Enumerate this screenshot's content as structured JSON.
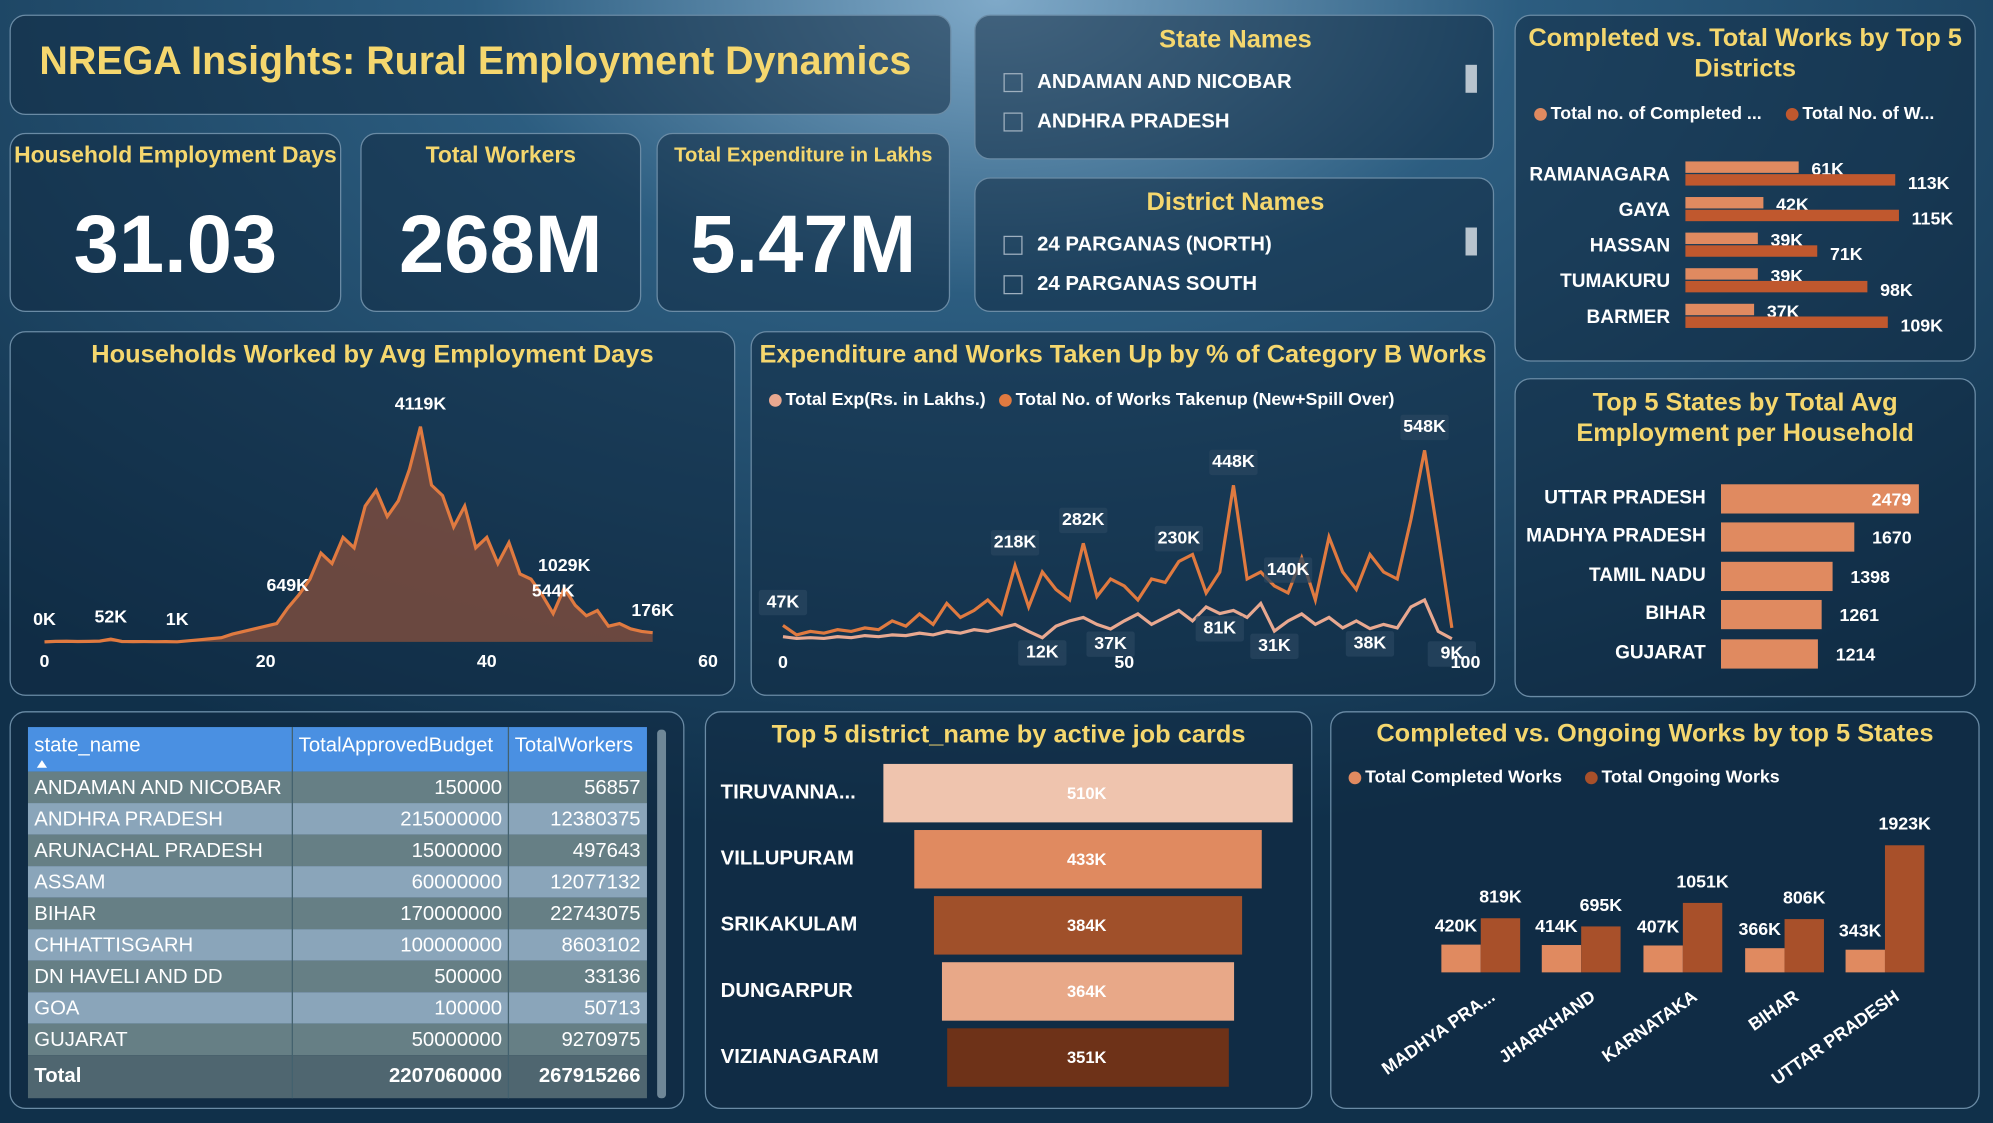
{
  "title": "NREGA Insights: Rural Employment Dynamics",
  "kpis": [
    {
      "label": "Household Employment Days",
      "value": "31.03"
    },
    {
      "label": "Total Workers",
      "value": "268M"
    },
    {
      "label": "Total Expenditure in Lakhs",
      "value": "5.47M"
    }
  ],
  "slicers": [
    {
      "title": "State Names",
      "items": [
        "ANDAMAN AND NICOBAR",
        "ANDHRA PRADESH"
      ]
    },
    {
      "title": "District Names",
      "items": [
        "24 PARGANAS (NORTH)",
        "24 PARGANAS SOUTH"
      ]
    }
  ],
  "table": {
    "columns": [
      "state_name",
      "TotalApprovedBudget",
      "TotalWorkers"
    ],
    "rows": [
      [
        "ANDAMAN AND NICOBAR",
        150000,
        56857
      ],
      [
        "ANDHRA PRADESH",
        215000000,
        12380375
      ],
      [
        "ARUNACHAL PRADESH",
        15000000,
        497643
      ],
      [
        "ASSAM",
        60000000,
        12077132
      ],
      [
        "BIHAR",
        170000000,
        22743075
      ],
      [
        "CHHATTISGARH",
        100000000,
        8603102
      ],
      [
        "DN HAVELI AND DD",
        500000,
        33136
      ],
      [
        "GOA",
        100000,
        50713
      ],
      [
        "GUJARAT",
        50000000,
        9270975
      ]
    ],
    "total": [
      "Total",
      2207060000,
      267915266
    ]
  },
  "chart_data": [
    {
      "type": "area",
      "title": "Households Worked by Avg Employment Days",
      "color": "#e07a40",
      "fill": "#7a4c3e",
      "x": [
        0,
        1,
        2,
        3,
        4,
        5,
        6,
        7,
        8,
        9,
        10,
        11,
        12,
        13,
        14,
        15,
        16,
        17,
        18,
        19,
        20,
        21,
        22,
        23,
        24,
        25,
        26,
        27,
        28,
        29,
        30,
        31,
        32,
        33,
        34,
        35,
        36,
        37,
        38,
        39,
        40,
        41,
        42,
        43,
        44,
        45,
        46,
        47,
        48,
        49,
        50,
        51,
        52,
        53,
        54,
        55
      ],
      "values": [
        0,
        10,
        12,
        8,
        10,
        15,
        52,
        8,
        5,
        6,
        4,
        5,
        1,
        20,
        40,
        60,
        80,
        150,
        200,
        250,
        300,
        350,
        649,
        900,
        1200,
        1700,
        1500,
        2000,
        1800,
        2600,
        2900,
        2400,
        2700,
        3300,
        4119,
        3000,
        2800,
        2200,
        2600,
        1800,
        2000,
        1500,
        1900,
        1300,
        1200,
        900,
        544,
        1029,
        700,
        500,
        600,
        300,
        350,
        250,
        200,
        176
      ],
      "value_labels": [
        "0K",
        null,
        null,
        null,
        null,
        null,
        "52K",
        null,
        null,
        null,
        null,
        null,
        "1K",
        null,
        null,
        null,
        null,
        null,
        null,
        null,
        null,
        null,
        "649K",
        null,
        null,
        null,
        null,
        null,
        null,
        null,
        null,
        null,
        null,
        null,
        "4119K",
        null,
        null,
        null,
        null,
        null,
        null,
        null,
        null,
        null,
        null,
        null,
        "544K",
        "1029K",
        null,
        null,
        null,
        null,
        null,
        null,
        null,
        "176K"
      ],
      "xlim": [
        0,
        60
      ],
      "xticks": [
        0,
        20,
        40,
        60
      ],
      "ylim": [
        0,
        4500
      ]
    },
    {
      "type": "line",
      "title": "Expenditure and Works Taken Up by % of Category B Works",
      "x": [
        0,
        2,
        4,
        6,
        8,
        10,
        12,
        14,
        16,
        18,
        20,
        22,
        24,
        26,
        28,
        30,
        32,
        34,
        36,
        38,
        40,
        42,
        44,
        46,
        48,
        50,
        52,
        54,
        56,
        58,
        60,
        62,
        64,
        66,
        68,
        70,
        72,
        74,
        76,
        78,
        80,
        82,
        84,
        86,
        88,
        90,
        92,
        94,
        96,
        98
      ],
      "series": [
        {
          "name": "Total Exp(Rs. in Lakhs.)",
          "color": "#e8a890",
          "values": [
            15,
            10,
            12,
            10,
            15,
            12,
            18,
            15,
            20,
            18,
            25,
            20,
            30,
            25,
            35,
            30,
            40,
            50,
            30,
            12,
            45,
            60,
            70,
            50,
            37,
            60,
            80,
            50,
            70,
            90,
            60,
            100,
            81,
            90,
            70,
            110,
            31,
            60,
            80,
            50,
            70,
            40,
            60,
            38,
            50,
            40,
            100,
            120,
            30,
            9
          ],
          "value_labels": [
            null,
            null,
            null,
            null,
            null,
            null,
            null,
            null,
            null,
            null,
            null,
            null,
            null,
            null,
            null,
            null,
            null,
            null,
            null,
            "12K",
            null,
            null,
            null,
            null,
            "37K",
            null,
            null,
            null,
            null,
            null,
            null,
            null,
            "81K",
            null,
            null,
            null,
            "31K",
            null,
            null,
            null,
            null,
            null,
            null,
            "38K",
            null,
            null,
            null,
            null,
            null,
            "9K"
          ]
        },
        {
          "name": "Total No. of Works Takenup (New+Spill Over)",
          "color": "#e07a40",
          "values": [
            47,
            20,
            30,
            25,
            35,
            30,
            40,
            35,
            60,
            45,
            80,
            50,
            110,
            70,
            90,
            120,
            80,
            218,
            100,
            200,
            150,
            120,
            282,
            130,
            180,
            160,
            120,
            180,
            170,
            230,
            250,
            140,
            200,
            448,
            180,
            200,
            160,
            140,
            240,
            120,
            300,
            200,
            150,
            250,
            200,
            180,
            350,
            548,
            300,
            40
          ],
          "value_labels": [
            "47K",
            null,
            null,
            null,
            null,
            null,
            null,
            null,
            null,
            null,
            null,
            null,
            null,
            null,
            null,
            null,
            null,
            "218K",
            null,
            null,
            null,
            null,
            "282K",
            null,
            null,
            null,
            null,
            null,
            null,
            "230K",
            null,
            null,
            null,
            "448K",
            null,
            null,
            null,
            "140K",
            null,
            null,
            null,
            null,
            null,
            null,
            null,
            null,
            null,
            "548K",
            null,
            null
          ]
        }
      ],
      "xlim": [
        0,
        100
      ],
      "xticks": [
        0,
        50,
        100
      ],
      "ylim": [
        0,
        600
      ]
    },
    {
      "type": "bar",
      "orientation": "horizontal",
      "title": "Completed vs. Total Works by Top 5 Districts",
      "categories": [
        "RAMANAGARA",
        "GAYA",
        "HASSAN",
        "TUMAKURU",
        "BARMER"
      ],
      "series": [
        {
          "name": "Total no. of Completed ...",
          "color": "#e08a60",
          "values": [
            61,
            42,
            39,
            39,
            37
          ],
          "value_labels": [
            "61K",
            "42K",
            "39K",
            "39K",
            "37K"
          ]
        },
        {
          "name": "Total No. of W...",
          "color": "#c0582e",
          "values": [
            113,
            115,
            71,
            98,
            109
          ],
          "value_labels": [
            "113K",
            "115K",
            "71K",
            "98K",
            "109K"
          ]
        }
      ],
      "xlim": [
        0,
        115
      ]
    },
    {
      "type": "bar",
      "orientation": "horizontal",
      "title": "Top 5 States by Total Avg Employment per Household",
      "categories": [
        "UTTAR PRADESH",
        "MADHYA PRADESH",
        "TAMIL NADU",
        "BIHAR",
        "GUJARAT"
      ],
      "series": [
        {
          "color": "#e08a60",
          "values": [
            2479,
            1670,
            1398,
            1261,
            1214
          ]
        }
      ],
      "xlim": [
        0,
        2500
      ]
    },
    {
      "type": "funnel",
      "title": "Top 5 district_name by active job cards",
      "categories": [
        "TIRUVANNA...",
        "VILLUPURAM",
        "SRIKAKULAM",
        "DUNGARPUR",
        "VIZIANAGARAM"
      ],
      "values": [
        510,
        433,
        384,
        364,
        351
      ],
      "value_labels": [
        "510K",
        "433K",
        "384K",
        "364K",
        "351K"
      ],
      "colors": [
        "#efc4ae",
        "#e08a60",
        "#a0502a",
        "#e8a888",
        "#6e3218"
      ]
    },
    {
      "type": "bar",
      "orientation": "vertical",
      "title": "Completed vs. Ongoing Works by top 5 States",
      "categories": [
        "MADHYA PRA...",
        "JHARKHAND",
        "KARNATAKA",
        "BIHAR",
        "UTTAR PRADESH"
      ],
      "series": [
        {
          "name": "Total Completed Works",
          "color": "#e08a60",
          "values": [
            420,
            414,
            407,
            366,
            343
          ],
          "value_labels": [
            "420K",
            "414K",
            "407K",
            "366K",
            "343K"
          ]
        },
        {
          "name": "Total Ongoing Works",
          "color": "#a8502a",
          "values": [
            819,
            695,
            1051,
            806,
            1923
          ],
          "value_labels": [
            "819K",
            "695K",
            "1051K",
            "806K",
            "1923K"
          ]
        }
      ],
      "ylim": [
        0,
        2000
      ]
    }
  ]
}
